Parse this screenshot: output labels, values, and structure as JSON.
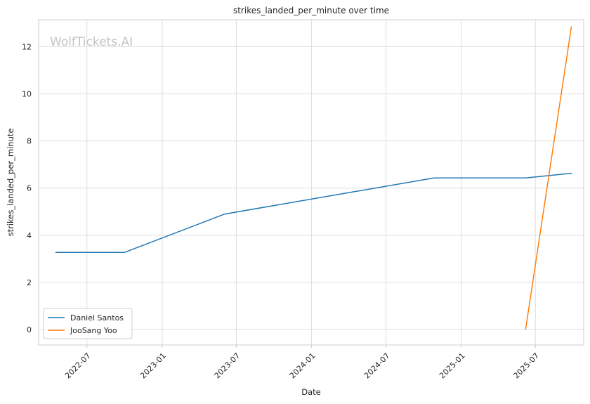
{
  "chart_data": {
    "type": "line",
    "title": "strikes_landed_per_minute over time",
    "xlabel": "Date",
    "ylabel": "strikes_landed_per_minute",
    "watermark": "WolfTickets.AI",
    "x_tick_labels": [
      "2022-07",
      "2023-01",
      "2023-07",
      "2024-01",
      "2024-07",
      "2025-01",
      "2025-07"
    ],
    "x_tick_dates": [
      "2022-07-01",
      "2023-01-01",
      "2023-07-01",
      "2024-01-01",
      "2024-07-01",
      "2025-01-01",
      "2025-07-01"
    ],
    "xlim": [
      "2022-03-05",
      "2025-10-27"
    ],
    "y_ticks": [
      0,
      2,
      4,
      6,
      8,
      10,
      12
    ],
    "y_tick_labels": [
      "0",
      "2",
      "4",
      "6",
      "8",
      "10",
      "12"
    ],
    "ylim": [
      -0.66,
      13.15
    ],
    "grid": true,
    "legend_position": "lower-left",
    "series": [
      {
        "name": "Daniel Santos",
        "color": "#1f77b4",
        "points": [
          {
            "x": "2022-04-16",
            "y": 3.27
          },
          {
            "x": "2022-10-01",
            "y": 3.27
          },
          {
            "x": "2023-06-03",
            "y": 4.9
          },
          {
            "x": "2024-10-26",
            "y": 6.43
          },
          {
            "x": "2025-06-07",
            "y": 6.43
          },
          {
            "x": "2025-09-27",
            "y": 6.63
          }
        ]
      },
      {
        "name": "JooSang Yoo",
        "color": "#ff7f0e",
        "points": [
          {
            "x": "2025-06-07",
            "y": 0.0
          },
          {
            "x": "2025-09-27",
            "y": 12.85
          }
        ]
      }
    ]
  }
}
